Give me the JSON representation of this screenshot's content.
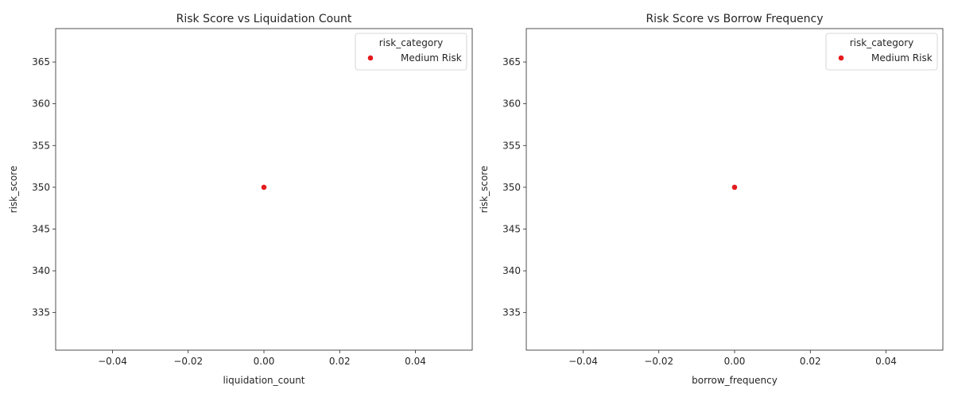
{
  "chart_data": [
    {
      "type": "scatter",
      "title": "Risk Score vs Liquidation Count",
      "xlabel": "liquidation_count",
      "ylabel": "risk_score",
      "xlim": [
        -0.055,
        0.055
      ],
      "ylim": [
        330.5,
        369
      ],
      "xticks": [
        -0.04,
        -0.02,
        0.0,
        0.02,
        0.04
      ],
      "xtick_labels": [
        "−0.04",
        "−0.02",
        "0.00",
        "0.02",
        "0.04"
      ],
      "yticks": [
        335,
        340,
        345,
        350,
        355,
        360,
        365
      ],
      "ytick_labels": [
        "335",
        "340",
        "345",
        "350",
        "355",
        "360",
        "365"
      ],
      "grid": false,
      "legend": {
        "title": "risk_category",
        "placement": "top-right",
        "entries": [
          {
            "label": "Medium Risk",
            "color": "#e41a1c"
          }
        ]
      },
      "series": [
        {
          "name": "Medium Risk",
          "color": "#e41a1c",
          "points": [
            {
              "x": 0.0,
              "y": 350
            }
          ]
        }
      ]
    },
    {
      "type": "scatter",
      "title": "Risk Score vs Borrow Frequency",
      "xlabel": "borrow_frequency",
      "ylabel": "risk_score",
      "xlim": [
        -0.055,
        0.055
      ],
      "ylim": [
        330.5,
        369
      ],
      "xticks": [
        -0.04,
        -0.02,
        0.0,
        0.02,
        0.04
      ],
      "xtick_labels": [
        "−0.04",
        "−0.02",
        "0.00",
        "0.02",
        "0.04"
      ],
      "yticks": [
        335,
        340,
        345,
        350,
        355,
        360,
        365
      ],
      "ytick_labels": [
        "335",
        "340",
        "345",
        "350",
        "355",
        "360",
        "365"
      ],
      "grid": false,
      "legend": {
        "title": "risk_category",
        "placement": "top-right",
        "entries": [
          {
            "label": "Medium Risk",
            "color": "#e41a1c"
          }
        ]
      },
      "series": [
        {
          "name": "Medium Risk",
          "color": "#e41a1c",
          "points": [
            {
              "x": 0.0,
              "y": 350
            }
          ]
        }
      ]
    }
  ]
}
